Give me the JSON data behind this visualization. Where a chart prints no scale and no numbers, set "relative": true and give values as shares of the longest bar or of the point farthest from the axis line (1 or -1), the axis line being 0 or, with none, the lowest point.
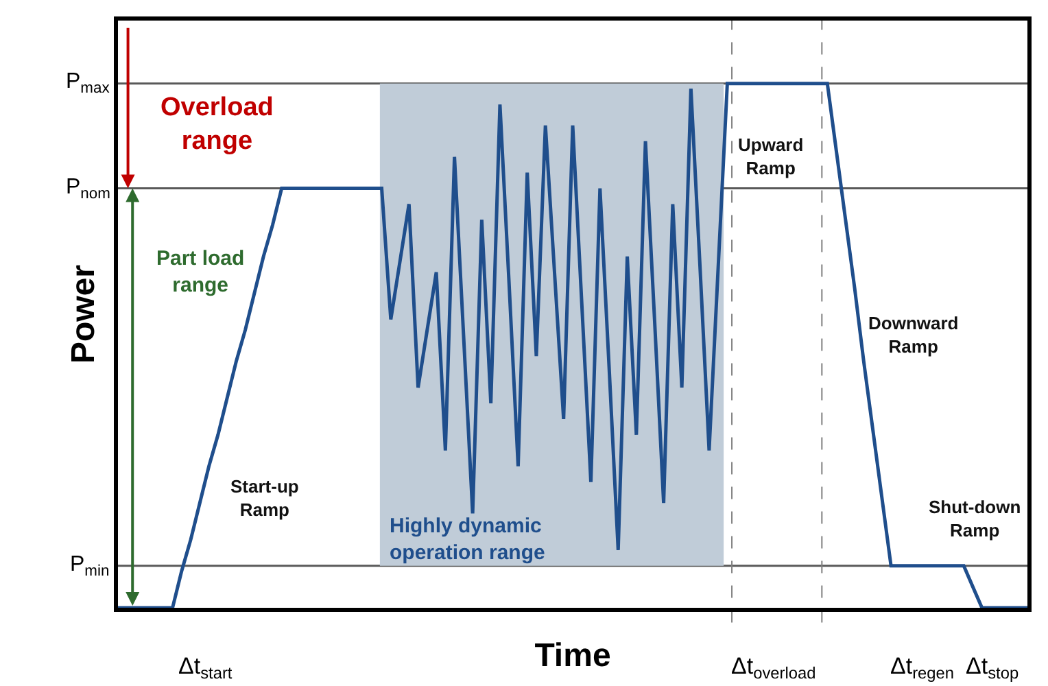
{
  "chart_data": {
    "type": "line",
    "xlabel": "Time",
    "ylabel": "Power",
    "categories": [
      null,
      null,
      null,
      null,
      null,
      null,
      null,
      null,
      null,
      null,
      null,
      null,
      null,
      null,
      null,
      null,
      null,
      null,
      null,
      null,
      null,
      null,
      null,
      null,
      null,
      null,
      null,
      null,
      null,
      null,
      null,
      null,
      null,
      null,
      null,
      null,
      null,
      null,
      null,
      null,
      null,
      null,
      null,
      null,
      null,
      null,
      null,
      null,
      null,
      null,
      null,
      null,
      null,
      null,
      null,
      null,
      null,
      null,
      null,
      null,
      null,
      null,
      null,
      null,
      null,
      null,
      null,
      null,
      null,
      null,
      null,
      null,
      null,
      null,
      null,
      null,
      null,
      null,
      null,
      null,
      null,
      null,
      null,
      null,
      null,
      null,
      null,
      null,
      null,
      null,
      null,
      null,
      null,
      null,
      null,
      null,
      null,
      null,
      null,
      null,
      null
    ],
    "series": [
      {
        "color": "#1f4e8c",
        "values": [
          0,
          0,
          0,
          0,
          0,
          0,
          0,
          0.07,
          0.13,
          0.2,
          0.27,
          0.33,
          0.4,
          0.47,
          0.53,
          0.6,
          0.67,
          0.73,
          0.8,
          0.8,
          0.8,
          0.8,
          0.8,
          0.8,
          0.8,
          0.8,
          0.8,
          0.8,
          0.8,
          0.8,
          0.55,
          0.66,
          0.77,
          0.42,
          0.53,
          0.64,
          0.3,
          0.86,
          0.52,
          0.18,
          0.74,
          0.39,
          0.96,
          0.62,
          0.27,
          0.83,
          0.48,
          0.92,
          0.64,
          0.36,
          0.92,
          0.58,
          0.24,
          0.8,
          0.46,
          0.11,
          0.67,
          0.33,
          0.89,
          0.55,
          0.2,
          0.77,
          0.42,
          0.99,
          0.65,
          0.3,
          0.65,
          1.0,
          1.0,
          1.0,
          1.0,
          1.0,
          1.0,
          1.0,
          1.0,
          1.0,
          1.0,
          1.0,
          1.0,
          0.87,
          0.74,
          0.61,
          0.47,
          0.34,
          0.21,
          0.08,
          0.08,
          0.08,
          0.08,
          0.08,
          0.08,
          0.08,
          0.08,
          0.08,
          0.04,
          0,
          0,
          0,
          0,
          0,
          0
        ]
      }
    ],
    "relative": true,
    "ref_lines": [
      {
        "axis": "y",
        "value": 0.08,
        "label": "P$_{min}$",
        "color": "#595959"
      },
      {
        "axis": "y",
        "value": 0.8,
        "label": "P$_{nom}$",
        "color": "#595959"
      },
      {
        "axis": "y",
        "value": 1.0,
        "label": "P$_{max}$",
        "color": "#595959"
      }
    ],
    "legend": false,
    "marker": "none",
    "line_style": "solid",
    "annotations": [
      "Overload range",
      "Part load range",
      "Start-up Ramp",
      "Upward Ramp",
      "Downward Ramp",
      "Shut-down Ramp",
      "Highly dynamic operation range",
      "Δt$_{start}$",
      "Δt$_{overload}$",
      "Δt$_{regen}$",
      "Δt$_{stop}$"
    ]
  }
}
